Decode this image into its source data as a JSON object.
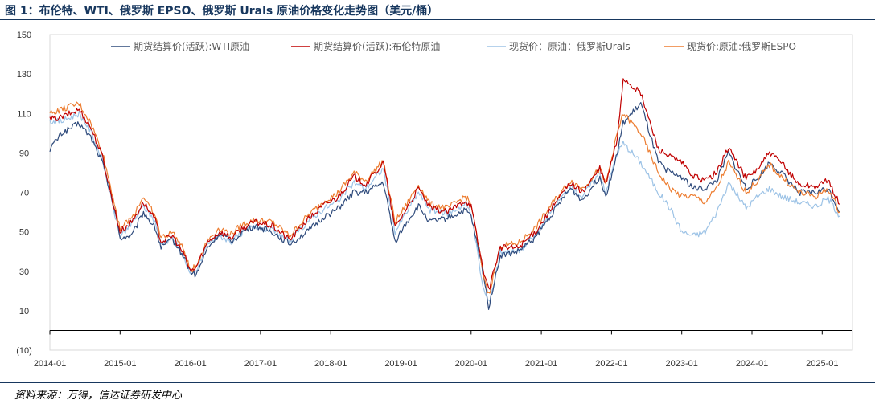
{
  "figure": {
    "title": "图 1：布伦特、WTI、俄罗斯 EPSO、俄罗斯 Urals 原油价格变化走势图（美元/桶）",
    "source": "资料来源：万得，信达证券研发中心"
  },
  "chart_data": {
    "type": "line",
    "title": "",
    "xlabel": "",
    "ylabel": "",
    "ylim": [
      -10,
      150
    ],
    "y_ticks": [
      -10,
      10,
      30,
      50,
      70,
      90,
      110,
      130,
      150
    ],
    "y_tick_labels": [
      "(10)",
      "10",
      "30",
      "50",
      "70",
      "90",
      "110",
      "130",
      "150"
    ],
    "x_range": [
      "2014-01",
      "2025-04"
    ],
    "x_tick_labels": [
      "2014-01",
      "2015-01",
      "2016-01",
      "2017-01",
      "2018-01",
      "2019-01",
      "2020-01",
      "2021-01",
      "2022-01",
      "2023-01",
      "2024-01",
      "2025-01"
    ],
    "grid": false,
    "legend_position": "top",
    "series": [
      {
        "name": "期货结算价(活跃):WTI原油",
        "color": "#2f4b7c",
        "x": [
          "2014-01",
          "2014-03",
          "2014-06",
          "2014-08",
          "2014-10",
          "2014-12",
          "2015-01",
          "2015-03",
          "2015-05",
          "2015-07",
          "2015-08",
          "2015-10",
          "2015-12",
          "2016-01",
          "2016-02",
          "2016-04",
          "2016-06",
          "2016-08",
          "2016-10",
          "2016-12",
          "2017-03",
          "2017-06",
          "2017-09",
          "2017-12",
          "2018-02",
          "2018-05",
          "2018-07",
          "2018-10",
          "2018-12",
          "2019-02",
          "2019-04",
          "2019-06",
          "2019-09",
          "2019-12",
          "2020-01",
          "2020-03",
          "2020-04",
          "2020-05",
          "2020-06",
          "2020-09",
          "2020-12",
          "2021-03",
          "2021-06",
          "2021-08",
          "2021-11",
          "2021-12",
          "2022-02",
          "2022-03",
          "2022-06",
          "2022-09",
          "2022-11",
          "2023-01",
          "2023-03",
          "2023-05",
          "2023-07",
          "2023-09",
          "2023-12",
          "2024-02",
          "2024-04",
          "2024-06",
          "2024-09",
          "2024-12",
          "2025-02",
          "2025-04"
        ],
        "values": [
          92,
          100,
          105,
          98,
          85,
          62,
          47,
          48,
          60,
          52,
          42,
          46,
          37,
          30,
          28,
          42,
          49,
          45,
          50,
          53,
          50,
          44,
          50,
          58,
          61,
          70,
          70,
          75,
          45,
          55,
          63,
          55,
          57,
          61,
          58,
          30,
          12,
          25,
          38,
          40,
          47,
          60,
          72,
          66,
          78,
          68,
          90,
          105,
          115,
          85,
          80,
          78,
          72,
          72,
          76,
          90,
          72,
          77,
          85,
          80,
          70,
          70,
          72,
          60
        ]
      },
      {
        "name": "期货结算价(活跃):布伦特原油",
        "color": "#c00000",
        "x": [
          "2014-01",
          "2014-03",
          "2014-06",
          "2014-08",
          "2014-10",
          "2014-12",
          "2015-01",
          "2015-03",
          "2015-05",
          "2015-07",
          "2015-08",
          "2015-10",
          "2015-12",
          "2016-01",
          "2016-02",
          "2016-04",
          "2016-06",
          "2016-08",
          "2016-10",
          "2016-12",
          "2017-03",
          "2017-06",
          "2017-09",
          "2017-12",
          "2018-02",
          "2018-05",
          "2018-07",
          "2018-10",
          "2018-12",
          "2019-02",
          "2019-04",
          "2019-06",
          "2019-09",
          "2019-12",
          "2020-01",
          "2020-03",
          "2020-04",
          "2020-05",
          "2020-06",
          "2020-09",
          "2020-12",
          "2021-03",
          "2021-06",
          "2021-08",
          "2021-11",
          "2021-12",
          "2022-02",
          "2022-03",
          "2022-06",
          "2022-09",
          "2022-11",
          "2023-01",
          "2023-03",
          "2023-05",
          "2023-07",
          "2023-09",
          "2023-12",
          "2024-02",
          "2024-04",
          "2024-06",
          "2024-09",
          "2024-12",
          "2025-02",
          "2025-04"
        ],
        "values": [
          107,
          108,
          112,
          103,
          88,
          62,
          50,
          55,
          65,
          56,
          45,
          48,
          38,
          30,
          32,
          45,
          50,
          47,
          52,
          55,
          53,
          46,
          56,
          64,
          67,
          78,
          74,
          85,
          52,
          62,
          72,
          62,
          60,
          66,
          63,
          32,
          20,
          32,
          42,
          42,
          50,
          63,
          75,
          70,
          82,
          74,
          97,
          128,
          120,
          92,
          88,
          85,
          78,
          76,
          80,
          93,
          77,
          82,
          90,
          85,
          74,
          73,
          76,
          64
        ]
      },
      {
        "name": "现货价：原油：俄罗斯Urals",
        "color": "#9dc3e6",
        "x": [
          "2014-01",
          "2014-03",
          "2014-06",
          "2014-08",
          "2014-10",
          "2014-12",
          "2015-01",
          "2015-03",
          "2015-05",
          "2015-07",
          "2015-08",
          "2015-10",
          "2015-12",
          "2016-01",
          "2016-02",
          "2016-04",
          "2016-06",
          "2016-08",
          "2016-10",
          "2016-12",
          "2017-03",
          "2017-06",
          "2017-09",
          "2017-12",
          "2018-02",
          "2018-05",
          "2018-07",
          "2018-10",
          "2018-12",
          "2019-02",
          "2019-04",
          "2019-06",
          "2019-09",
          "2019-12",
          "2020-01",
          "2020-03",
          "2020-04",
          "2020-05",
          "2020-06",
          "2020-09",
          "2020-12",
          "2021-03",
          "2021-06",
          "2021-08",
          "2021-11",
          "2021-12",
          "2022-02",
          "2022-03",
          "2022-06",
          "2022-09",
          "2022-11",
          "2023-01",
          "2023-03",
          "2023-05",
          "2023-07",
          "2023-09",
          "2023-12",
          "2024-02",
          "2024-04",
          "2024-06",
          "2024-09",
          "2024-12",
          "2025-02",
          "2025-04"
        ],
        "values": [
          106,
          106,
          110,
          101,
          86,
          60,
          48,
          54,
          63,
          55,
          44,
          47,
          37,
          28,
          30,
          44,
          48,
          45,
          50,
          53,
          51,
          45,
          55,
          62,
          65,
          75,
          72,
          82,
          50,
          60,
          70,
          61,
          59,
          64,
          60,
          22,
          14,
          25,
          40,
          40,
          48,
          62,
          73,
          68,
          80,
          70,
          90,
          95,
          85,
          70,
          62,
          50,
          48,
          50,
          60,
          75,
          62,
          68,
          72,
          68,
          65,
          63,
          67,
          58
        ]
      },
      {
        "name": "现货价:原油:俄罗斯ESPO",
        "color": "#ed7d31",
        "x": [
          "2014-01",
          "2014-03",
          "2014-06",
          "2014-08",
          "2014-10",
          "2014-12",
          "2015-01",
          "2015-03",
          "2015-05",
          "2015-07",
          "2015-08",
          "2015-10",
          "2015-12",
          "2016-01",
          "2016-02",
          "2016-04",
          "2016-06",
          "2016-08",
          "2016-10",
          "2016-12",
          "2017-03",
          "2017-06",
          "2017-09",
          "2017-12",
          "2018-02",
          "2018-05",
          "2018-07",
          "2018-10",
          "2018-12",
          "2019-02",
          "2019-04",
          "2019-06",
          "2019-09",
          "2019-12",
          "2020-01",
          "2020-03",
          "2020-04",
          "2020-05",
          "2020-06",
          "2020-09",
          "2020-12",
          "2021-03",
          "2021-06",
          "2021-08",
          "2021-11",
          "2021-12",
          "2022-02",
          "2022-03",
          "2022-06",
          "2022-09",
          "2022-11",
          "2023-01",
          "2023-03",
          "2023-05",
          "2023-07",
          "2023-09",
          "2023-12",
          "2024-02",
          "2024-04",
          "2024-06",
          "2024-09",
          "2024-12",
          "2025-02",
          "2025-04"
        ],
        "values": [
          110,
          112,
          115,
          105,
          90,
          65,
          52,
          57,
          68,
          58,
          47,
          50,
          40,
          30,
          33,
          46,
          52,
          49,
          54,
          56,
          55,
          48,
          58,
          66,
          69,
          80,
          76,
          86,
          55,
          64,
          74,
          64,
          62,
          68,
          64,
          30,
          18,
          30,
          43,
          44,
          52,
          65,
          76,
          72,
          82,
          74,
          100,
          110,
          100,
          80,
          72,
          68,
          68,
          65,
          72,
          85,
          70,
          76,
          84,
          78,
          70,
          68,
          72,
          60
        ]
      }
    ]
  }
}
